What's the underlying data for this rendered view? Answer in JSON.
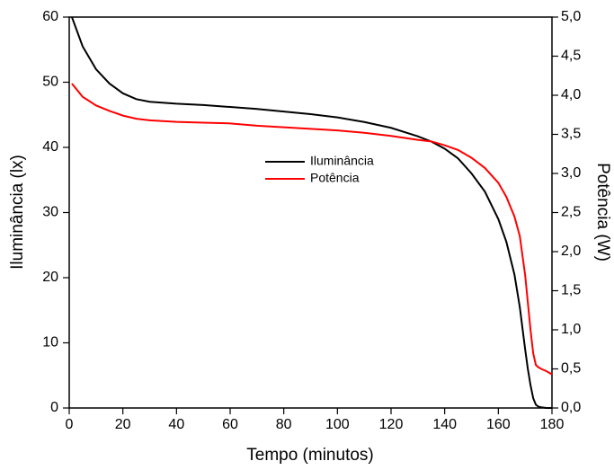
{
  "chart_data": {
    "type": "line",
    "xlabel": "Tempo (minutos)",
    "ylabel": "Iluminância (lx)",
    "y2label": "Potência (W)",
    "x": [
      1,
      5,
      10,
      15,
      20,
      25,
      30,
      40,
      50,
      60,
      70,
      80,
      90,
      100,
      110,
      120,
      130,
      135,
      140,
      145,
      150,
      155,
      160,
      163,
      166,
      168,
      170,
      171,
      172,
      173,
      174,
      175,
      176,
      178,
      180
    ],
    "series": [
      {
        "name": "Iluminância",
        "color": "#000000",
        "axis": "y",
        "values": [
          60,
          55.5,
          52,
          49.8,
          48.3,
          47.4,
          47,
          46.7,
          46.5,
          46.2,
          45.9,
          45.5,
          45.1,
          44.6,
          43.9,
          43,
          41.7,
          40.9,
          39.8,
          38.3,
          36,
          33.2,
          29,
          25.5,
          20.5,
          15.5,
          9,
          6,
          3.5,
          1.5,
          0.5,
          0.2,
          0.1,
          0,
          0
        ]
      },
      {
        "name": "Potência",
        "color": "#ff0000",
        "axis": "y2",
        "values": [
          4.15,
          3.98,
          3.87,
          3.8,
          3.74,
          3.7,
          3.68,
          3.66,
          3.65,
          3.64,
          3.61,
          3.59,
          3.57,
          3.55,
          3.52,
          3.48,
          3.43,
          3.41,
          3.36,
          3.3,
          3.2,
          3.07,
          2.88,
          2.7,
          2.45,
          2.2,
          1.7,
          1.35,
          1.0,
          0.7,
          0.55,
          0.52,
          0.5,
          0.47,
          0.43
        ]
      }
    ],
    "xlim": [
      0,
      180
    ],
    "xticks": [
      0,
      20,
      40,
      60,
      80,
      100,
      120,
      140,
      160,
      180
    ],
    "ylim": [
      0,
      60
    ],
    "yticks": [
      0,
      10,
      20,
      30,
      40,
      50,
      60
    ],
    "y2lim": [
      0,
      5
    ],
    "y2ticks": [
      {
        "value": 0,
        "label": "0,0"
      },
      {
        "value": 0.5,
        "label": "0,5"
      },
      {
        "value": 1,
        "label": "1,0"
      },
      {
        "value": 1.5,
        "label": "1,5"
      },
      {
        "value": 2,
        "label": "2,0"
      },
      {
        "value": 2.5,
        "label": "2,5"
      },
      {
        "value": 3,
        "label": "3,0"
      },
      {
        "value": 3.5,
        "label": "3,5"
      },
      {
        "value": 4,
        "label": "4,0"
      },
      {
        "value": 4.5,
        "label": "4,5"
      },
      {
        "value": 5,
        "label": "5,0"
      }
    ],
    "legend": "center"
  }
}
